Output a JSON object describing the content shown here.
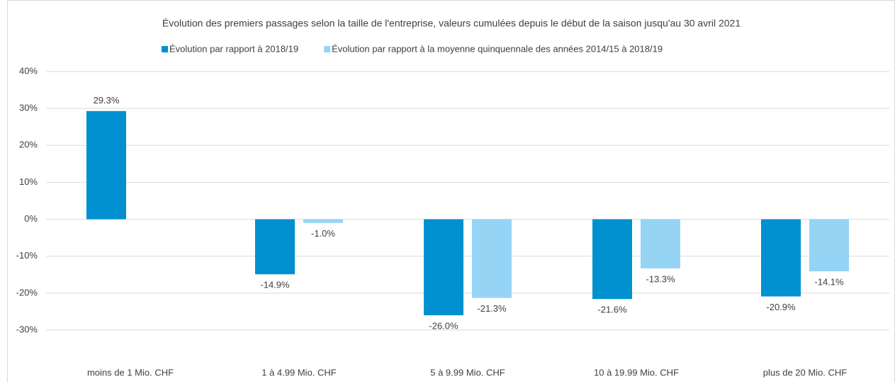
{
  "chart_data": {
    "type": "bar",
    "title": "Évolution des premiers passages selon la taille de l'entreprise, valeurs cumulées depuis le début de la saison jusqu'au 30 avril 2021",
    "categories": [
      "moins de 1 Mio. CHF",
      "1 à 4.99 Mio. CHF",
      "5 à 9.99 Mio. CHF",
      "10 à 19.99 Mio. CHF",
      "plus de 20 Mio. CHF"
    ],
    "series": [
      {
        "name": "Évolution par rapport à 2018/19",
        "color": "#0090d0",
        "values": [
          29.3,
          -14.9,
          -26.0,
          -21.6,
          -20.9
        ],
        "value_labels": [
          "29.3%",
          "-14.9%",
          "-26.0%",
          "-21.6%",
          "-20.9%"
        ]
      },
      {
        "name": "Évolution par rapport à la moyenne quinquennale des années 2014/15 à 2018/19",
        "color": "#96d4f5",
        "values": [
          null,
          -1.0,
          -21.3,
          -13.3,
          -14.1
        ],
        "value_labels": [
          null,
          "-1.0%",
          "-21.3%",
          "-13.3%",
          "-14.1%"
        ]
      }
    ],
    "ylim": [
      -30,
      40
    ],
    "yticks": [
      {
        "value": -30,
        "label": "-30%"
      },
      {
        "value": -20,
        "label": "-20%"
      },
      {
        "value": -10,
        "label": "-10%"
      },
      {
        "value": 0,
        "label": "0%"
      },
      {
        "value": 10,
        "label": "10%"
      },
      {
        "value": 20,
        "label": "20%"
      },
      {
        "value": 30,
        "label": "30%"
      },
      {
        "value": 40,
        "label": "40%"
      }
    ],
    "grid": true,
    "legend": "top"
  }
}
